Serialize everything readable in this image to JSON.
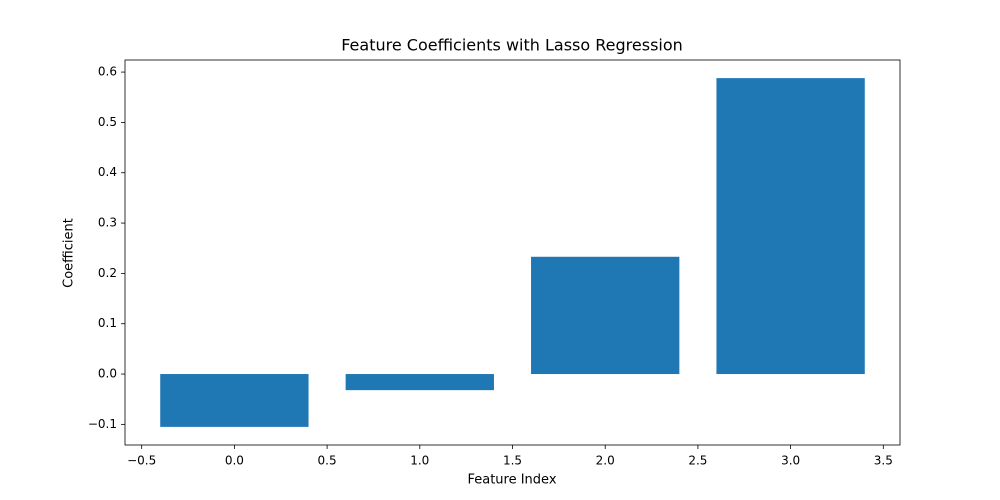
{
  "chart_data": {
    "type": "bar",
    "title": "Feature Coefficients with Lasso Regression",
    "xlabel": "Feature Index",
    "ylabel": "Coefficient",
    "x": [
      0,
      1,
      2,
      3
    ],
    "values": [
      -0.105,
      -0.032,
      0.233,
      0.588
    ],
    "color": "#1f77b4",
    "bar_width": 0.8,
    "xlim": [
      -0.59,
      3.59
    ],
    "xticks": [
      {
        "value": -0.5,
        "label": "−0.5"
      },
      {
        "value": 0,
        "label": "0.0"
      },
      0.5,
      {
        "value": 1,
        "label": "1.0"
      },
      1.5,
      {
        "value": 2,
        "label": "2.0"
      },
      2.5,
      {
        "value": 3,
        "label": "3.0"
      },
      3.5
    ],
    "ylim": [
      -0.141,
      0.624
    ],
    "yticks": [
      {
        "value": -0.1,
        "label": "−0.1"
      },
      {
        "value": 0,
        "label": "0.0"
      },
      0.1,
      0.2,
      0.3,
      0.4,
      0.5,
      0.6
    ],
    "grid": false
  }
}
